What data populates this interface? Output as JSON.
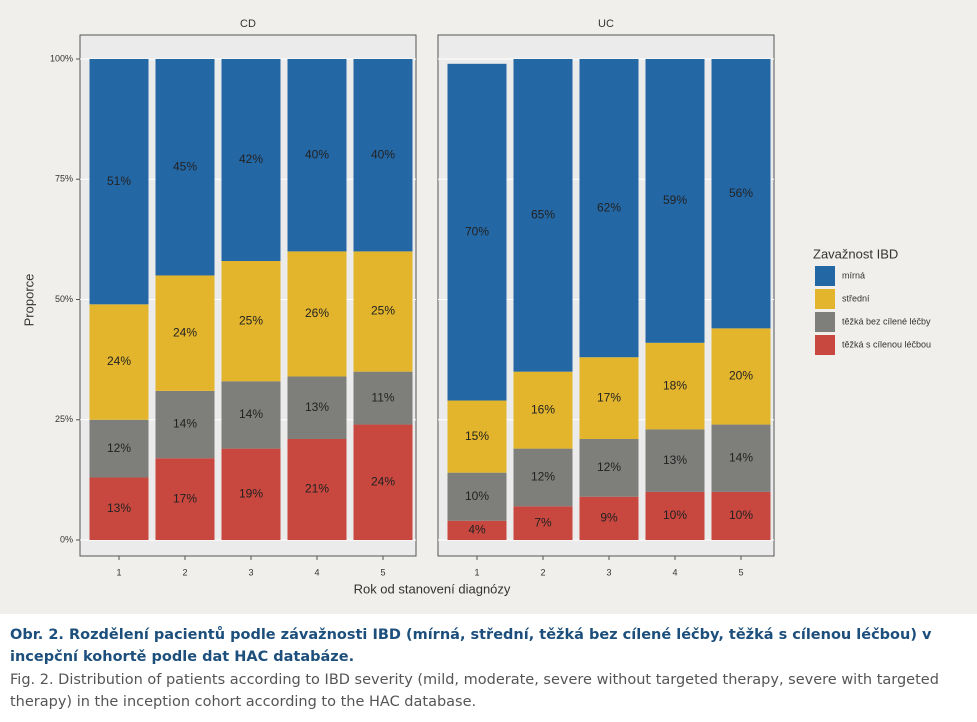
{
  "chart_data": [
    {
      "type": "bar",
      "stacked": true,
      "title": "CD",
      "categories": [
        "1",
        "2",
        "3",
        "4",
        "5"
      ],
      "ylim": [
        0,
        100
      ],
      "yticks": [
        {
          "value": 0,
          "label": "0%"
        },
        {
          "value": 25,
          "label": "25%"
        },
        {
          "value": 50,
          "label": "50%"
        },
        {
          "value": 75,
          "label": "75%"
        },
        {
          "value": 100,
          "label": "100%"
        }
      ],
      "grid": true,
      "series": [
        {
          "name": "mírná",
          "color": "#2467a5",
          "values": [
            51,
            45,
            42,
            40,
            40
          ],
          "value_labels": [
            "51%",
            "45%",
            "42%",
            "40%",
            "40%"
          ]
        },
        {
          "name": "střední",
          "color": "#e3b52d",
          "values": [
            24,
            24,
            25,
            26,
            25
          ],
          "value_labels": [
            "24%",
            "24%",
            "25%",
            "26%",
            "25%"
          ]
        },
        {
          "name": "těžká bez cílené léčby",
          "color": "#7e7e7b",
          "values": [
            12,
            14,
            14,
            13,
            11
          ],
          "value_labels": [
            "12%",
            "14%",
            "14%",
            "13%",
            "11%"
          ]
        },
        {
          "name": "těžká s cílenou léčbou",
          "color": "#c8473f",
          "values": [
            13,
            17,
            19,
            21,
            24
          ],
          "value_labels": [
            "13%",
            "17%",
            "19%",
            "21%",
            "24%"
          ]
        }
      ]
    },
    {
      "type": "bar",
      "stacked": true,
      "title": "UC",
      "categories": [
        "1",
        "2",
        "3",
        "4",
        "5"
      ],
      "ylim": [
        0,
        100
      ],
      "grid": true,
      "series": [
        {
          "name": "mírná",
          "color": "#2467a5",
          "values": [
            70,
            65,
            62,
            59,
            56
          ],
          "value_labels": [
            "70%",
            "65%",
            "62%",
            "59%",
            "56%"
          ]
        },
        {
          "name": "střední",
          "color": "#e3b52d",
          "values": [
            15,
            16,
            17,
            18,
            20
          ],
          "value_labels": [
            "15%",
            "16%",
            "17%",
            "18%",
            "20%"
          ]
        },
        {
          "name": "těžká bez cílené léčby",
          "color": "#7e7e7b",
          "values": [
            10,
            12,
            12,
            13,
            14
          ],
          "value_labels": [
            "10%",
            "12%",
            "12%",
            "13%",
            "14%"
          ]
        },
        {
          "name": "těžká s cílenou léčbou",
          "color": "#c8473f",
          "values": [
            4,
            7,
            9,
            10,
            10
          ],
          "value_labels": [
            "4%",
            "7%",
            "9%",
            "10%",
            "10%"
          ]
        }
      ]
    }
  ],
  "x_label": "Rok od stanovení diagnózy",
  "y_label": "Proporce",
  "legend_title": "Zavažnost IBD",
  "caption": {
    "cs": "Obr. 2. Rozdělení pacientů podle závažnosti IBD (mírná, střední, těžká bez cílené léčby, těžká s cílenou léčbou) v incepční kohortě podle dat HAC databáze.",
    "en": "Fig. 2. Distribution of patients according to IBD severity (mild, moderate, severe without targeted therapy, severe with targeted therapy) in the inception cohort according to the HAC database."
  }
}
